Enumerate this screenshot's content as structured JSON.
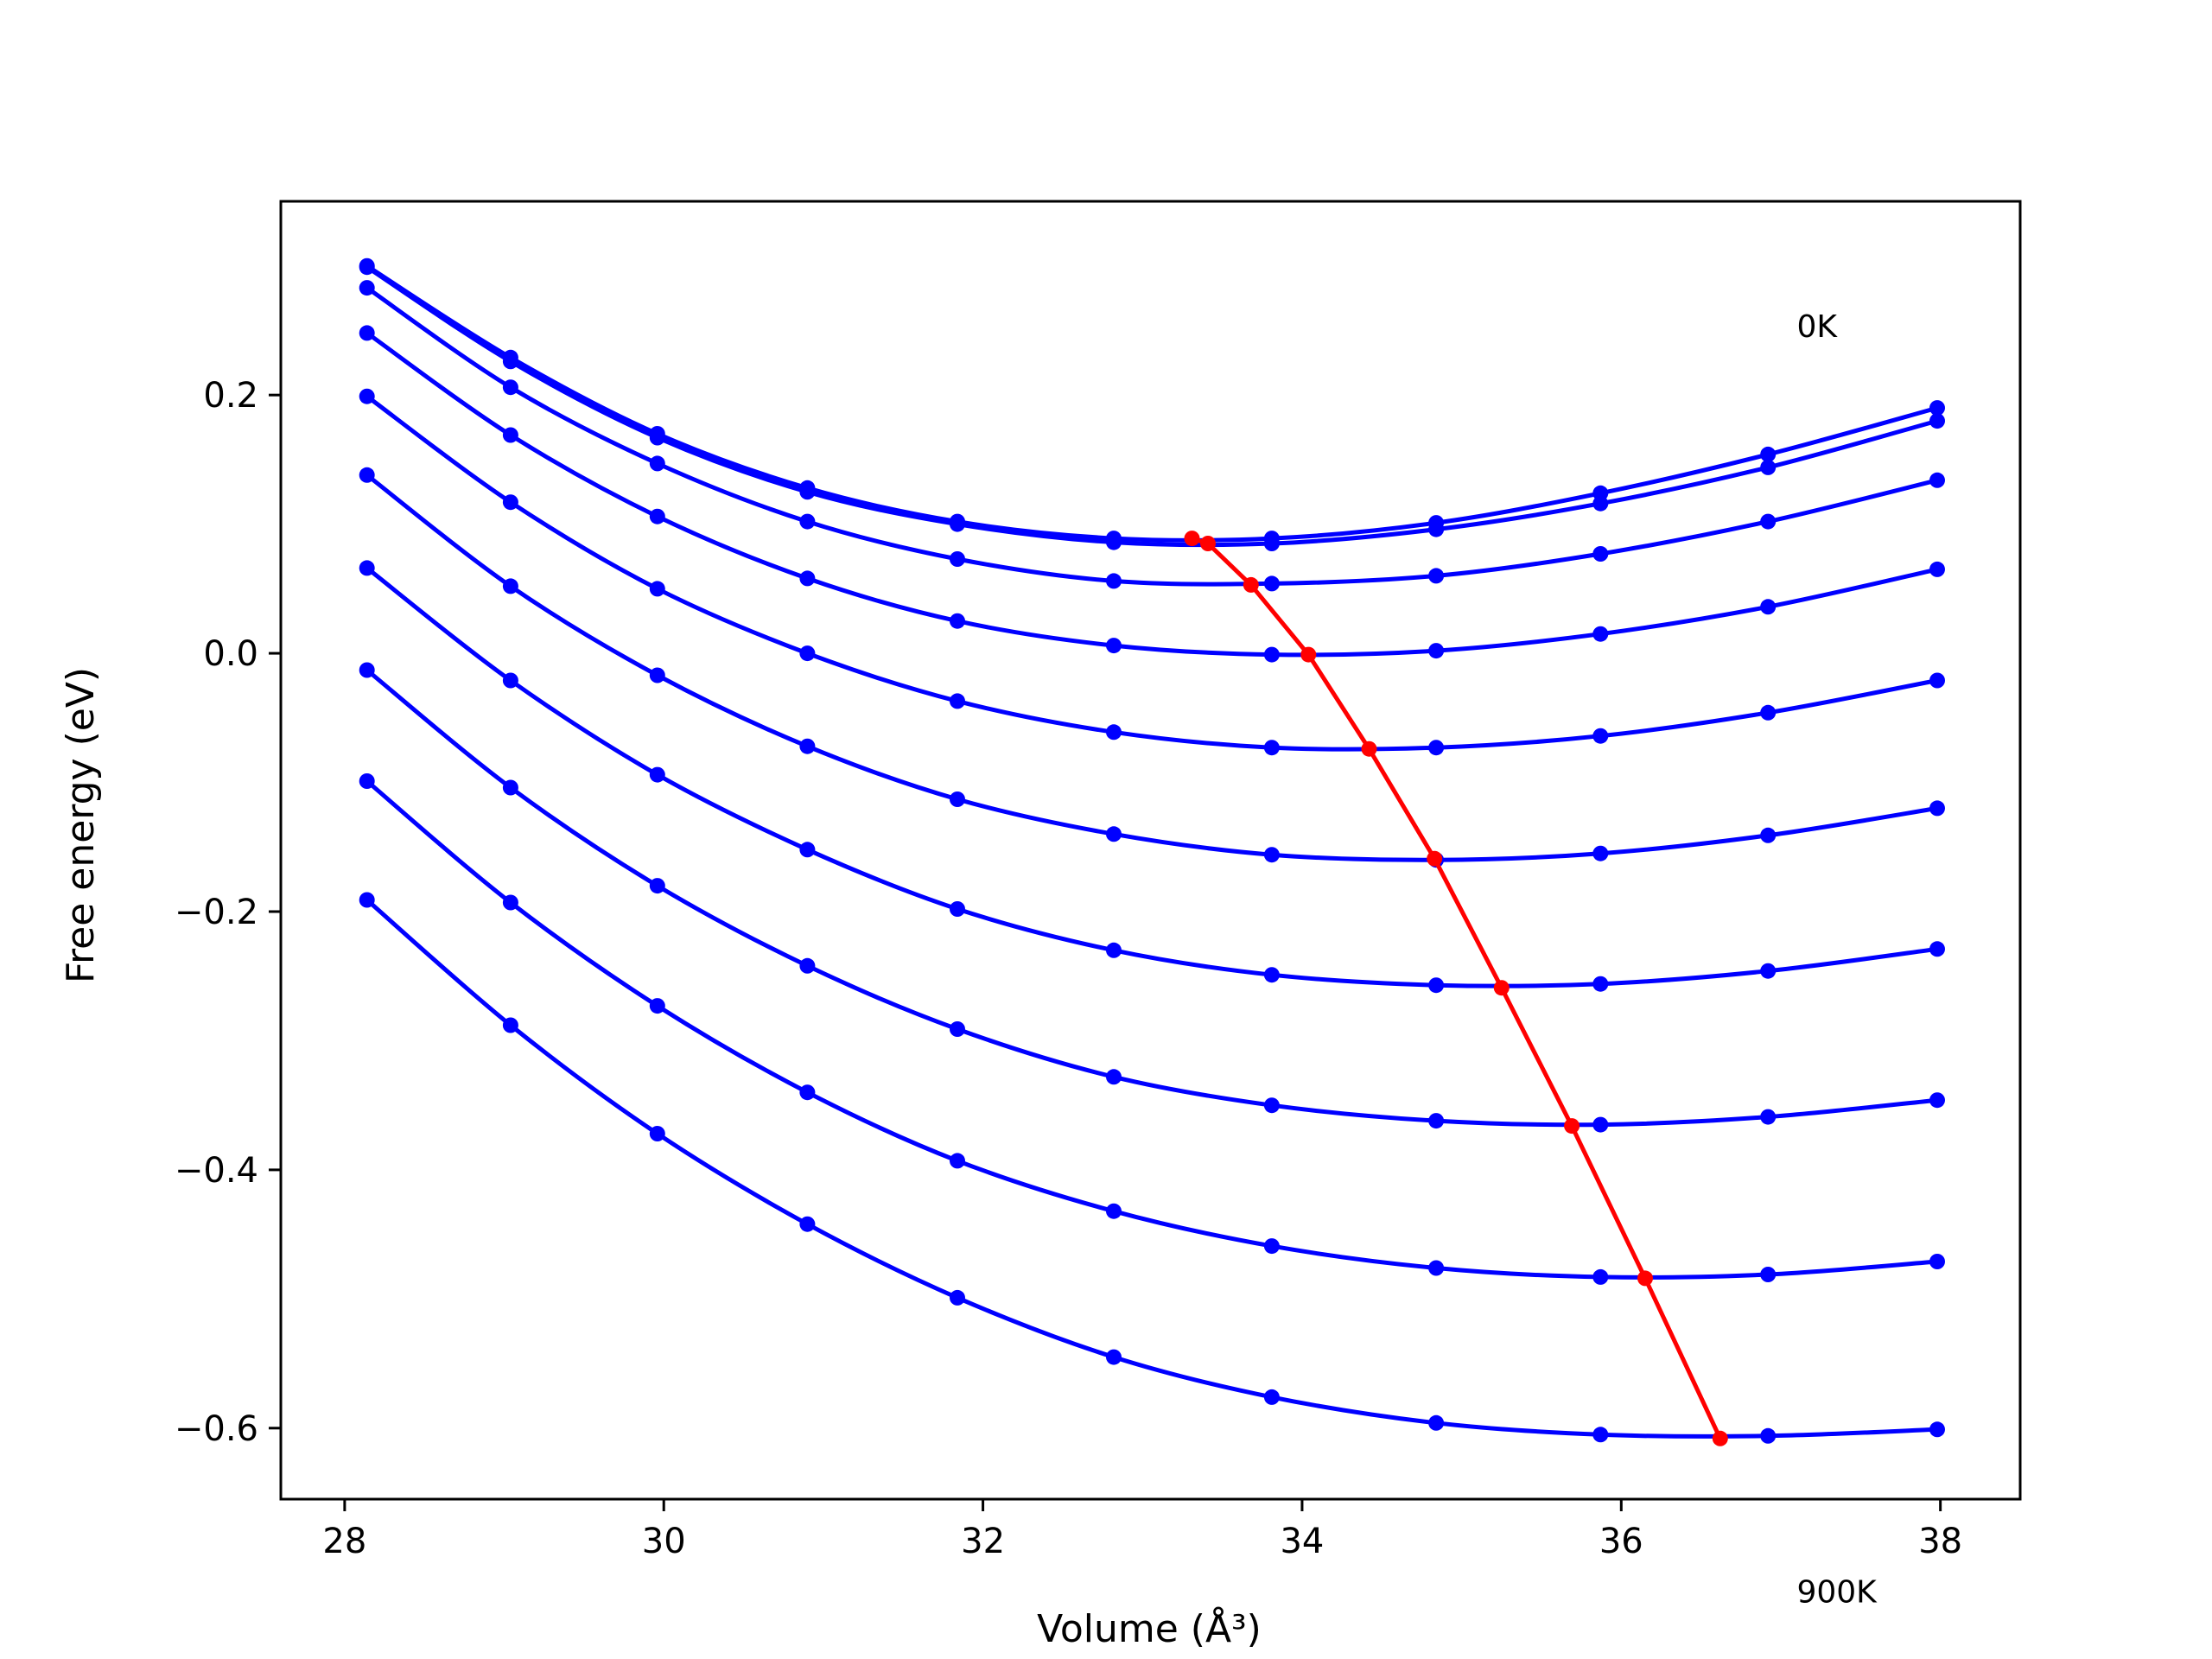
{
  "chart_data": {
    "type": "line",
    "title": "",
    "xlabel": "Volume (Å³)",
    "ylabel": "Free energy (eV)",
    "xlim": [
      27.6,
      38.5
    ],
    "ylim": [
      -0.655,
      0.35
    ],
    "xticks": [
      28,
      30,
      32,
      34,
      36,
      38
    ],
    "xtick_labels": [
      "28",
      "30",
      "32",
      "34",
      "36",
      "38"
    ],
    "yticks": [
      0.2,
      0.0,
      -0.2,
      -0.4,
      -0.6
    ],
    "ytick_labels": [
      "0.2",
      "0.0",
      "−0.2",
      "−0.4",
      "−0.6"
    ],
    "grid": false,
    "annotations": [
      {
        "text": "0K",
        "x": 37.1,
        "y": 0.245
      },
      {
        "text": "900K",
        "x": 37.1,
        "y": -0.735
      }
    ],
    "colors": {
      "curves": "#0000ff",
      "minimum_path": "#ff0000"
    },
    "x": [
      28.14,
      29.04,
      29.96,
      30.9,
      31.84,
      32.82,
      33.81,
      34.84,
      35.87,
      36.92,
      37.98
    ],
    "series": [
      {
        "values": [
          0.3,
          0.229,
          0.17,
          0.128,
          0.102,
          0.089,
          0.089,
          0.101,
          0.124,
          0.154,
          0.19
        ]
      },
      {
        "values": [
          0.299,
          0.226,
          0.167,
          0.125,
          0.1,
          0.086,
          0.085,
          0.096,
          0.116,
          0.144,
          0.18
        ]
      },
      {
        "values": [
          0.283,
          0.206,
          0.147,
          0.102,
          0.073,
          0.056,
          0.054,
          0.06,
          0.077,
          0.102,
          0.134
        ]
      },
      {
        "values": [
          0.248,
          0.169,
          0.106,
          0.058,
          0.025,
          0.006,
          -0.001,
          0.002,
          0.015,
          0.036,
          0.065
        ]
      },
      {
        "values": [
          0.199,
          0.117,
          0.05,
          0.0,
          -0.037,
          -0.061,
          -0.073,
          -0.073,
          -0.064,
          -0.046,
          -0.021
        ]
      },
      {
        "values": [
          0.138,
          0.052,
          -0.017,
          -0.072,
          -0.113,
          -0.14,
          -0.156,
          -0.16,
          -0.155,
          -0.141,
          -0.12
        ]
      },
      {
        "values": [
          0.066,
          -0.021,
          -0.094,
          -0.152,
          -0.198,
          -0.23,
          -0.249,
          -0.257,
          -0.256,
          -0.246,
          -0.229
        ]
      },
      {
        "values": [
          -0.013,
          -0.104,
          -0.18,
          -0.242,
          -0.291,
          -0.328,
          -0.35,
          -0.362,
          -0.365,
          -0.359,
          -0.346
        ]
      },
      {
        "values": [
          -0.099,
          -0.193,
          -0.273,
          -0.34,
          -0.393,
          -0.432,
          -0.459,
          -0.476,
          -0.483,
          -0.481,
          -0.471
        ]
      },
      {
        "values": [
          -0.191,
          -0.288,
          -0.372,
          -0.442,
          -0.499,
          -0.545,
          -0.576,
          -0.596,
          -0.605,
          -0.606,
          -0.601
        ]
      }
    ],
    "minimum_path": {
      "x": [
        33.31,
        33.41,
        33.68,
        34.04,
        34.42,
        34.83,
        35.25,
        35.69,
        36.15,
        36.62
      ],
      "y": [
        0.089,
        0.085,
        0.053,
        -0.001,
        -0.074,
        -0.159,
        -0.259,
        -0.366,
        -0.484,
        -0.608
      ]
    }
  }
}
